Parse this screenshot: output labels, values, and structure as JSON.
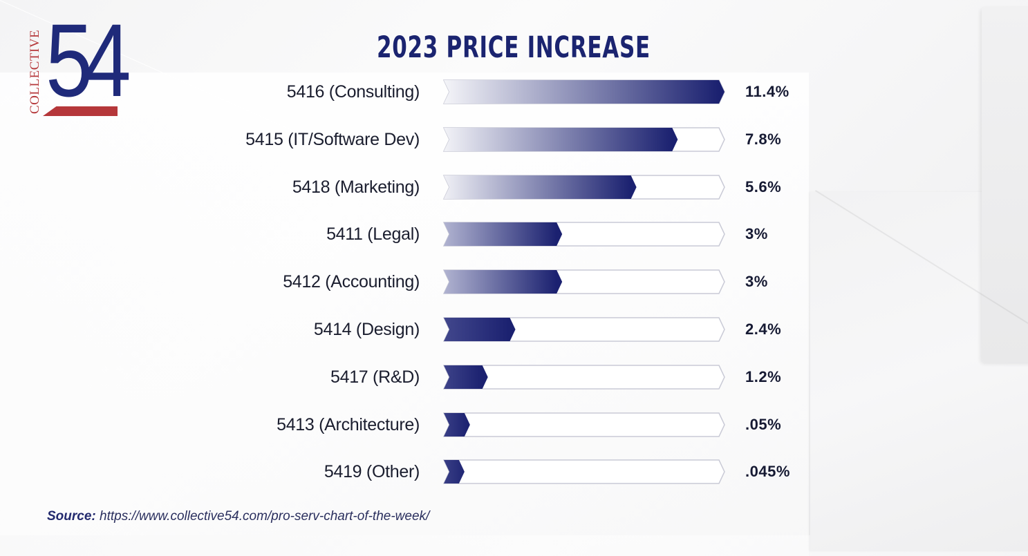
{
  "logo": {
    "word": "COLLECTIVE",
    "number": "54",
    "colors": {
      "primary": "#1f2a7a",
      "accent": "#b5373a"
    }
  },
  "chart_data": {
    "type": "bar",
    "orientation": "horizontal",
    "title": "2023 PRICE INCREASE",
    "xlabel": "",
    "ylabel": "",
    "grid": false,
    "legend": "none",
    "categories": [
      "5416 (Consulting)",
      "5415 (IT/Software Dev)",
      "5418 (Marketing)",
      "5411 (Legal)",
      "5412 (Accounting)",
      "5414 (Design)",
      "5417 (R&D)",
      "5413 (Architecture)",
      "5419 (Other)"
    ],
    "values": [
      11.4,
      7.8,
      5.6,
      3,
      3,
      2.4,
      1.2,
      0.05,
      0.045
    ],
    "value_labels": [
      "11.4%",
      "7.8%",
      "5.6%",
      "3%",
      "3%",
      "2.4%",
      "1.2%",
      ".05%",
      ".045%"
    ],
    "fill_fraction": [
      1.0,
      0.83,
      0.68,
      0.41,
      0.41,
      0.24,
      0.14,
      0.075,
      0.055
    ],
    "unit": "%",
    "colors": {
      "bar_dark": "#1b2170",
      "bar_light": "#ffffff",
      "track_stroke": "#c9cad6"
    }
  },
  "source": {
    "label": "Source:",
    "url": "https://www.collective54.com/pro-serv-chart-of-the-week/"
  }
}
